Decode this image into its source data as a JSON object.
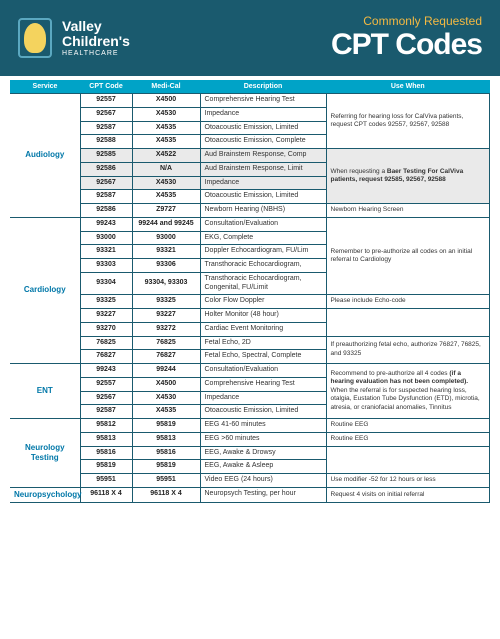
{
  "header": {
    "logo_line1": "Valley",
    "logo_line2": "Children's",
    "logo_line3": "HEALTHCARE",
    "title_sub": "Commonly Requested",
    "title_main": "CPT Codes"
  },
  "columns": {
    "service": "Service",
    "cpt": "CPT Code",
    "medi": "Medi-Cal",
    "desc": "Description",
    "use": "Use When"
  },
  "sections": [
    {
      "service": "Audiology",
      "rows": [
        {
          "cpt": "92557",
          "medi": "X4500",
          "desc": "Comprehensive Hearing Test",
          "use": "Referring for hearing loss for CalViva patients, request CPT codes 92557, 92567, 92588",
          "use_rowspan": 4,
          "hl": false
        },
        {
          "cpt": "92567",
          "medi": "X4530",
          "desc": "Impedance"
        },
        {
          "cpt": "92587",
          "medi": "X4535",
          "desc": "Otoacoustic Emission, Limited"
        },
        {
          "cpt": "92588",
          "medi": "X4535",
          "desc": "Otoacoustic Emission, Complete"
        },
        {
          "cpt": "92585",
          "medi": "X4522",
          "desc": "Aud Brainstem Response, Comp",
          "use": "When requesting a <b>Baer Testing For CalViva patients, request 92585, 92567, 92588</b>",
          "use_rowspan": 4,
          "hl": true
        },
        {
          "cpt": "92586",
          "medi": "N/A",
          "desc": "Aud Brainstem Response, Limit",
          "hl": true
        },
        {
          "cpt": "92567",
          "medi": "X4530",
          "desc": "Impedance",
          "hl": true
        },
        {
          "cpt": "92587",
          "medi": "X4535",
          "desc": "Otoacoustic Emission, Limited"
        },
        {
          "cpt": "92586",
          "medi": "Z9727",
          "desc": "Newborn Hearing (NBHS)",
          "use": "Newborn Hearing Screen",
          "use_rowspan": 1
        }
      ]
    },
    {
      "service": "Cardiology",
      "rows": [
        {
          "cpt": "99243",
          "medi": "99244 and 99245",
          "desc": "Consultation/Evaluation",
          "use": "Remember to pre-authorize all codes on an initial referral to Cardiology",
          "use_rowspan": 5
        },
        {
          "cpt": "93000",
          "medi": "93000",
          "desc": "EKG, Complete"
        },
        {
          "cpt": "93321",
          "medi": "93321",
          "desc": "Doppler Echocardiogram, FU/Lim"
        },
        {
          "cpt": "93303",
          "medi": "93306",
          "desc": "Transthoracic Echocardiogram,"
        },
        {
          "cpt": "93304",
          "medi": "93304, 93303",
          "desc": "Transthoracic Echocardiogram, Congenital, FU/Limit"
        },
        {
          "cpt": "93325",
          "medi": "93325",
          "desc": "Color Flow Doppler",
          "use": "Please include Echo-code",
          "use_rowspan": 1
        },
        {
          "cpt": "93227",
          "medi": "93227",
          "desc": "Holter Monitor (48 hour)",
          "use": "",
          "use_rowspan": 2
        },
        {
          "cpt": "93270",
          "medi": "93272",
          "desc": "Cardiac Event Monitoring"
        },
        {
          "cpt": "76825",
          "medi": "76825",
          "desc": "Fetal Echo, 2D",
          "use": "If preauthorizing fetal echo, authorize 76827, 76825, and 93325",
          "use_rowspan": 2
        },
        {
          "cpt": "76827",
          "medi": "76827",
          "desc": "Fetal Echo, Spectral, Complete"
        }
      ]
    },
    {
      "service": "ENT",
      "rows": [
        {
          "cpt": "99243",
          "medi": "99244",
          "desc": "Consultation/Evaluation",
          "use": "Recommend to pre-authorize all 4 codes <b>(if a hearing evaluation has not been completed).</b> When the referral is for suspected hearing loss, otalgia, Eustation Tube Dysfunction (ETD), microtia, atresia, or craniofacial anomalies, Tinnitus",
          "use_rowspan": 4
        },
        {
          "cpt": "92557",
          "medi": "X4500",
          "desc": "Comprehensive Hearing Test"
        },
        {
          "cpt": "92567",
          "medi": "X4530",
          "desc": "Impedance"
        },
        {
          "cpt": "92587",
          "medi": "X4535",
          "desc": "Otoacoustic Emission, Limited"
        }
      ]
    },
    {
      "service": "Neurology Testing",
      "rows": [
        {
          "cpt": "95812",
          "medi": "95819",
          "desc": "EEG 41-60 minutes",
          "use": "Routine EEG",
          "use_rowspan": 1
        },
        {
          "cpt": "95813",
          "medi": "95813",
          "desc": "EEG >60 minutes",
          "use": "Routine EEG",
          "use_rowspan": 1
        },
        {
          "cpt": "95816",
          "medi": "95816",
          "desc": "EEG, Awake & Drowsy",
          "use": "",
          "use_rowspan": 2
        },
        {
          "cpt": "95819",
          "medi": "95819",
          "desc": "EEG, Awake & Asleep"
        },
        {
          "cpt": "95951",
          "medi": "95951",
          "desc": "Video EEG (24 hours)",
          "use": "Use modifier -52 for 12 hours or less",
          "use_rowspan": 1
        }
      ]
    },
    {
      "service": "Neuropsychology",
      "rows": [
        {
          "cpt": "96118 X 4",
          "medi": "96118 X 4",
          "desc": "Neuropsych Testing, per hour",
          "use": "Request 4 visits on initial referral",
          "use_rowspan": 1
        }
      ]
    }
  ]
}
